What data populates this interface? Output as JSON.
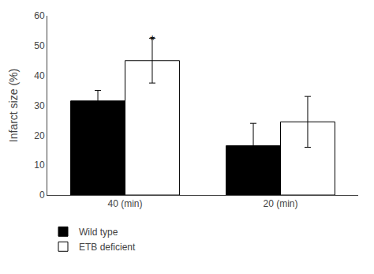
{
  "chart_data": {
    "type": "bar",
    "categories": [
      "40 (min)",
      "20 (min)"
    ],
    "series": [
      {
        "name": "Wild type",
        "color": "#000000",
        "values": [
          31.5,
          16.5
        ],
        "error": [
          3.5,
          7.5
        ]
      },
      {
        "name": "ETB deficient",
        "color": "#ffffff",
        "values": [
          45.0,
          24.5
        ],
        "error": [
          7.5,
          8.5
        ]
      }
    ],
    "ylabel": "Infarct size (%)",
    "ylim": [
      0,
      60
    ],
    "yticks": [
      0,
      10,
      20,
      30,
      40,
      50,
      60
    ],
    "grid": false,
    "legend": "bottom left",
    "annotations": [
      {
        "text": "*",
        "x": "40 (min)",
        "series": "ETB deficient",
        "y": 49
      }
    ]
  }
}
